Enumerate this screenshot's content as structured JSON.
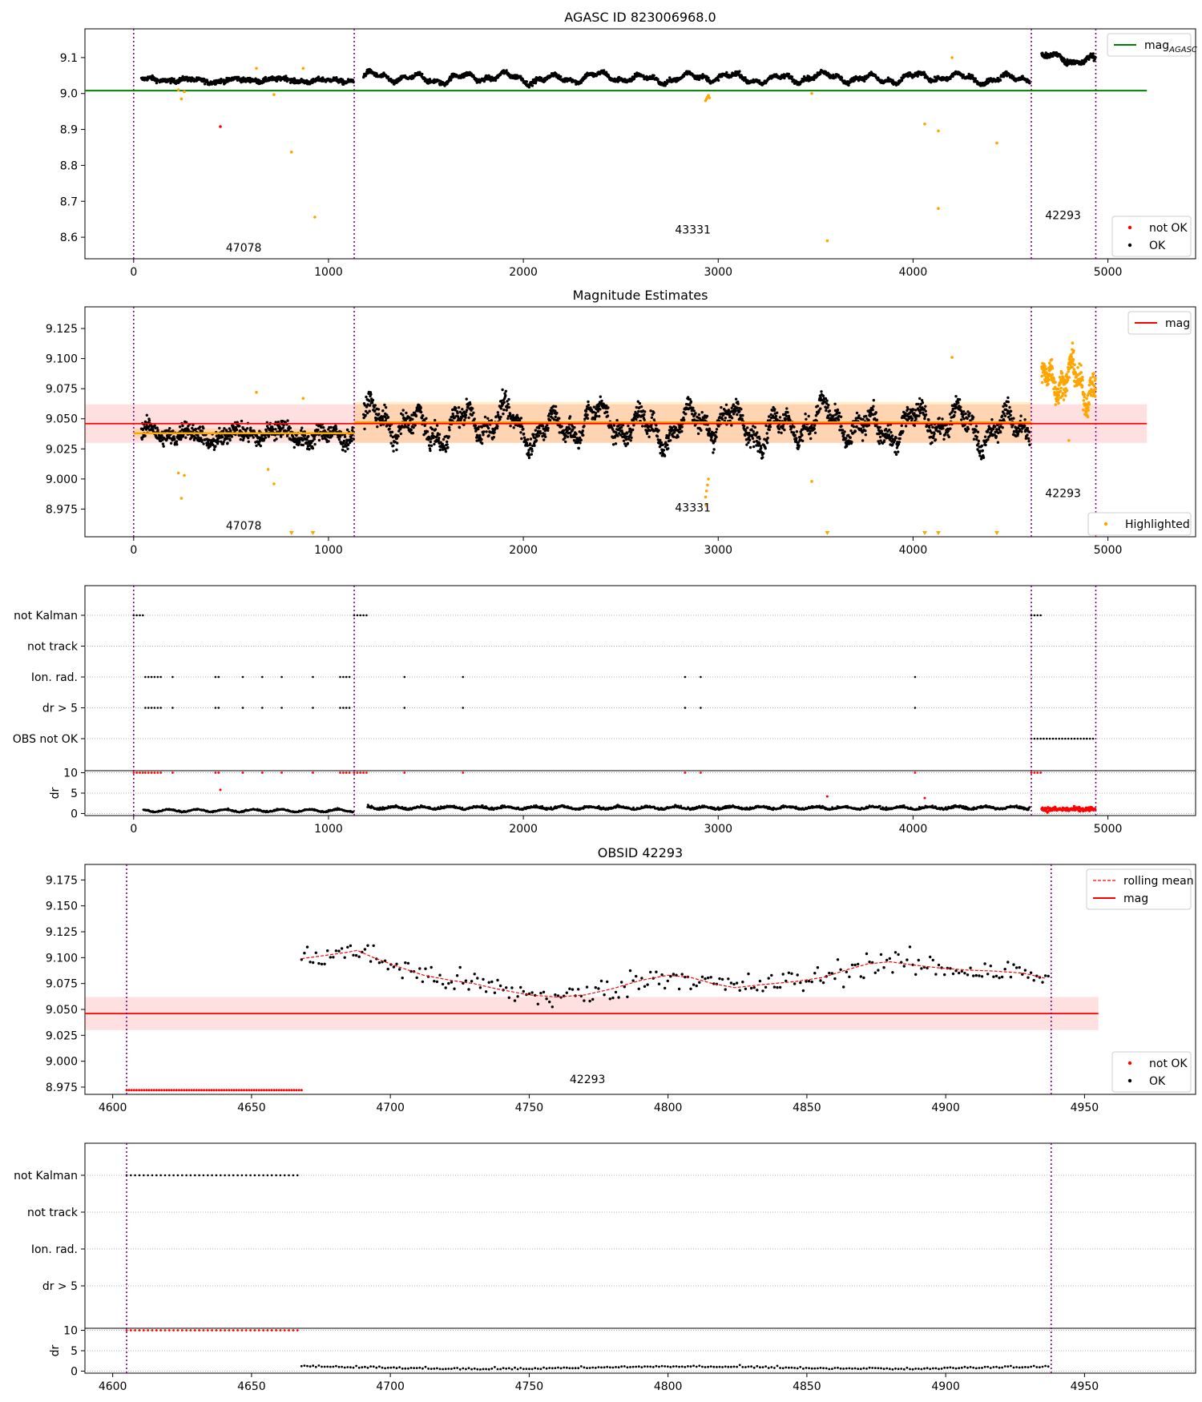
{
  "chart_data": [
    {
      "type": "scatter",
      "title": "AGASC ID 823006968.0",
      "xlim": [
        -250,
        5450
      ],
      "ylim": [
        8.54,
        9.18
      ],
      "xticks": [
        0,
        1000,
        2000,
        3000,
        4000,
        5000
      ],
      "yticks": [
        8.6,
        8.7,
        8.8,
        8.9,
        9.0,
        9.1
      ],
      "ytick_decimals": 1,
      "obs_boundaries": [
        0,
        1132,
        4607,
        4938
      ],
      "obsids": [
        {
          "label": "47078",
          "x": 565,
          "y": 8.56
        },
        {
          "label": "43331",
          "x": 2870,
          "y": 8.61
        },
        {
          "label": "42293",
          "x": 4770,
          "y": 8.65
        }
      ],
      "reference_line": {
        "name": "mag_AGASC",
        "value": 9.008,
        "x_range": [
          -250,
          5200
        ],
        "color": "#008000"
      },
      "legend_upper": [
        {
          "label": "mag",
          "sub": "AGASC",
          "kind": "line",
          "color": "#008000"
        }
      ],
      "legend_lower": [
        {
          "label": "not OK",
          "kind": "dot",
          "color": "#ff0000"
        },
        {
          "label": "OK",
          "kind": "dot",
          "color": "#000000"
        }
      ],
      "series_ok": {
        "segments": [
          {
            "x0": 40,
            "x1": 1130,
            "base": 9.037,
            "amp": 0.007,
            "noise": 0.006,
            "n": 560
          },
          {
            "x0": 1180,
            "x1": 4600,
            "base": 9.043,
            "amp": 0.018,
            "noise": 0.006,
            "n": 1650
          },
          {
            "x0": 4660,
            "x1": 4938,
            "base": 9.095,
            "amp": 0.018,
            "noise": 0.008,
            "n": 150
          }
        ]
      },
      "series_highlight": [
        [
          230,
          9.01
        ],
        [
          245,
          8.985
        ],
        [
          260,
          9.005
        ],
        [
          630,
          9.07
        ],
        [
          720,
          8.997
        ],
        [
          810,
          8.837
        ],
        [
          870,
          9.07
        ],
        [
          930,
          8.656
        ],
        [
          2940,
          8.985
        ],
        [
          2945,
          8.99
        ],
        [
          2950,
          8.995
        ],
        [
          2935,
          8.98
        ],
        [
          2955,
          8.988
        ],
        [
          3480,
          9.0
        ],
        [
          3560,
          8.59
        ],
        [
          4060,
          8.915
        ],
        [
          4130,
          8.896
        ],
        [
          4130,
          8.68
        ],
        [
          4200,
          9.1
        ],
        [
          4430,
          8.862
        ]
      ],
      "series_notok": [
        [
          445,
          8.908
        ]
      ]
    },
    {
      "type": "scatter",
      "title": "Magnitude Estimates",
      "xlim": [
        -250,
        5450
      ],
      "ylim": [
        8.952,
        9.143
      ],
      "xticks": [
        0,
        1000,
        2000,
        3000,
        4000,
        5000
      ],
      "yticks": [
        8.975,
        9.0,
        9.025,
        9.05,
        9.075,
        9.1,
        9.125
      ],
      "ytick_decimals": 3,
      "obs_boundaries": [
        0,
        1132,
        4607,
        4938
      ],
      "obsids": [
        {
          "label": "47078",
          "x": 565,
          "y": 8.958
        },
        {
          "label": "43331",
          "x": 2870,
          "y": 8.973
        },
        {
          "label": "42293",
          "x": 4770,
          "y": 8.985
        }
      ],
      "mag_line": {
        "value": 9.046,
        "band": [
          9.03,
          9.062
        ],
        "x_range": [
          -250,
          5200
        ]
      },
      "obs_means": [
        {
          "x0": 0,
          "x1": 1132,
          "value": 9.038,
          "band": [
            9.034,
            9.042
          ]
        },
        {
          "x0": 1132,
          "x1": 4607,
          "value": 9.047,
          "band": [
            9.03,
            9.064
          ]
        }
      ],
      "legend_upper": [
        {
          "label": "mag",
          "kind": "line",
          "color": "#ff0000"
        }
      ],
      "legend_lower": [
        {
          "label": "Highlighted",
          "kind": "dot",
          "color": "#ffa500"
        }
      ],
      "series_ok": {
        "segments": [
          {
            "x0": 40,
            "x1": 1130,
            "base": 9.037,
            "amp": 0.008,
            "noise": 0.007,
            "n": 700
          },
          {
            "x0": 1180,
            "x1": 4600,
            "base": 9.045,
            "amp": 0.02,
            "noise": 0.008,
            "n": 2000
          }
        ]
      },
      "series_highlight_cluster": {
        "x0": 4660,
        "x1": 4938,
        "base": 9.08,
        "amp": 0.02,
        "noise": 0.01,
        "n": 260
      },
      "series_highlight": [
        [
          230,
          9.005
        ],
        [
          245,
          8.984
        ],
        [
          260,
          9.003
        ],
        [
          630,
          9.072
        ],
        [
          690,
          9.008
        ],
        [
          720,
          8.996
        ],
        [
          870,
          9.067
        ],
        [
          2935,
          8.985
        ],
        [
          2940,
          8.99
        ],
        [
          2945,
          8.995
        ],
        [
          2950,
          9.0
        ],
        [
          2938,
          8.978
        ],
        [
          3480,
          8.998
        ],
        [
          4200,
          9.101
        ],
        [
          4800,
          9.032
        ]
      ],
      "markers_below": [
        810,
        920,
        3560,
        4060,
        4130,
        4430
      ]
    },
    {
      "type": "scatter",
      "title": "",
      "xlim": [
        -250,
        5450
      ],
      "xticks": [
        0,
        1000,
        2000,
        3000,
        4000,
        5000
      ],
      "categories": [
        "not Kalman",
        "not track",
        "Ion. rad.",
        "dr > 5",
        "OBS not OK"
      ],
      "obs_boundaries": [
        0,
        1132,
        4607,
        4938
      ],
      "flags": {
        "not Kalman": [
          [
            0,
            60
          ],
          [
            1132,
            1210
          ],
          [
            4607,
            4670
          ]
        ],
        "Ion. rad.": [
          [
            60,
            150
          ],
          [
            200,
            200
          ],
          [
            420,
            440
          ],
          [
            560,
            560
          ],
          [
            660,
            660
          ],
          [
            760,
            760
          ],
          [
            920,
            920
          ],
          [
            1060,
            1110
          ],
          [
            1390,
            1390
          ],
          [
            1690,
            1690
          ],
          [
            2830,
            2830
          ],
          [
            2910,
            2910
          ],
          [
            4010,
            4010
          ]
        ],
        "dr > 5": [
          [
            60,
            150
          ],
          [
            200,
            200
          ],
          [
            420,
            440
          ],
          [
            560,
            560
          ],
          [
            660,
            660
          ],
          [
            760,
            760
          ],
          [
            920,
            920
          ],
          [
            1060,
            1110
          ],
          [
            1390,
            1390
          ],
          [
            1690,
            1690
          ],
          [
            2830,
            2830
          ],
          [
            2910,
            2910
          ],
          [
            4010,
            4010
          ]
        ],
        "OBS not OK": [
          [
            4607,
            4938
          ]
        ]
      },
      "dr_panel": {
        "ylabel": "dr",
        "yticks": [
          0,
          5,
          10
        ],
        "ylim": [
          -0.5,
          10.5
        ],
        "red_at_10": [
          [
            0,
            60
          ],
          [
            60,
            150
          ],
          [
            200,
            200
          ],
          [
            420,
            440
          ],
          [
            560,
            560
          ],
          [
            660,
            660
          ],
          [
            760,
            760
          ],
          [
            920,
            920
          ],
          [
            1060,
            1110
          ],
          [
            1132,
            1210
          ],
          [
            1390,
            1390
          ],
          [
            1690,
            1690
          ],
          [
            2830,
            2830
          ],
          [
            2910,
            2910
          ],
          [
            4010,
            4010
          ],
          [
            4607,
            4670
          ]
        ],
        "red_points": [
          [
            445,
            5.8
          ],
          [
            3560,
            4.2
          ],
          [
            4060,
            3.8
          ]
        ],
        "red_cluster": {
          "x0": 4660,
          "x1": 4938,
          "base": 1.0,
          "noise": 0.6,
          "n": 120
        },
        "black_segments": [
          {
            "x0": 50,
            "x1": 1130,
            "base": 0.6,
            "noise": 0.3,
            "n": 400
          },
          {
            "x0": 1200,
            "x1": 4600,
            "base": 1.2,
            "noise": 0.5,
            "n": 1300
          }
        ]
      }
    },
    {
      "type": "line",
      "title": "OBSID 42293",
      "xlim": [
        4590,
        4990
      ],
      "ylim": [
        8.968,
        9.19
      ],
      "xticks": [
        4600,
        4650,
        4700,
        4750,
        4800,
        4850,
        4900,
        4950
      ],
      "yticks": [
        8.975,
        9.0,
        9.025,
        9.05,
        9.075,
        9.1,
        9.125,
        9.15,
        9.175
      ],
      "ytick_decimals": 3,
      "obs_boundaries": [
        4605,
        4938
      ],
      "obsids": [
        {
          "label": "42293",
          "x": 4771,
          "y": 8.979
        }
      ],
      "mag_line": {
        "value": 9.046,
        "band": [
          9.03,
          9.062
        ],
        "x_range": [
          4590,
          4955
        ]
      },
      "rolling_mean": [
        [
          4668,
          9.099
        ],
        [
          4676,
          9.102
        ],
        [
          4684,
          9.105
        ],
        [
          4688,
          9.107
        ],
        [
          4694,
          9.1
        ],
        [
          4702,
          9.092
        ],
        [
          4712,
          9.083
        ],
        [
          4722,
          9.078
        ],
        [
          4730,
          9.075
        ],
        [
          4738,
          9.07
        ],
        [
          4750,
          9.064
        ],
        [
          4760,
          9.062
        ],
        [
          4770,
          9.064
        ],
        [
          4780,
          9.07
        ],
        [
          4790,
          9.078
        ],
        [
          4800,
          9.083
        ],
        [
          4808,
          9.081
        ],
        [
          4816,
          9.075
        ],
        [
          4824,
          9.071
        ],
        [
          4834,
          9.074
        ],
        [
          4846,
          9.077
        ],
        [
          4856,
          9.081
        ],
        [
          4864,
          9.088
        ],
        [
          4872,
          9.094
        ],
        [
          4880,
          9.096
        ],
        [
          4888,
          9.093
        ],
        [
          4898,
          9.09
        ],
        [
          4908,
          9.088
        ],
        [
          4918,
          9.087
        ],
        [
          4928,
          9.085
        ],
        [
          4936,
          9.08
        ]
      ],
      "scatter_ok": {
        "x0": 4668,
        "x1": 4938,
        "n": 260,
        "noise": 0.012
      },
      "notok_row": {
        "x0": 4605,
        "x1": 4668,
        "value": 8.972
      },
      "legend_upper": [
        {
          "label": "rolling mean",
          "kind": "dashed",
          "color": "#ff0000"
        },
        {
          "label": "mag",
          "kind": "line",
          "color": "#ff0000"
        }
      ],
      "legend_lower": [
        {
          "label": "not OK",
          "kind": "dot",
          "color": "#ff0000"
        },
        {
          "label": "OK",
          "kind": "dot",
          "color": "#000000"
        }
      ]
    },
    {
      "type": "scatter",
      "title": "",
      "xlim": [
        4590,
        4990
      ],
      "xticks": [
        4600,
        4650,
        4700,
        4750,
        4800,
        4850,
        4900,
        4950
      ],
      "categories": [
        "not Kalman",
        "not track",
        "Ion. rad.",
        "dr > 5"
      ],
      "obs_boundaries": [
        4605,
        4938
      ],
      "flags": {
        "not Kalman": [
          [
            4605,
            4668
          ]
        ]
      },
      "dr_panel": {
        "ylabel": "dr",
        "yticks": [
          0,
          5,
          10
        ],
        "ylim": [
          -0.5,
          10.5
        ],
        "red_at_10": [
          [
            4605,
            4668
          ]
        ],
        "red_points": [],
        "black_segments": [
          {
            "x0": 4668,
            "x1": 4938,
            "base": 0.7,
            "noise": 0.4,
            "n": 260
          }
        ]
      }
    }
  ]
}
